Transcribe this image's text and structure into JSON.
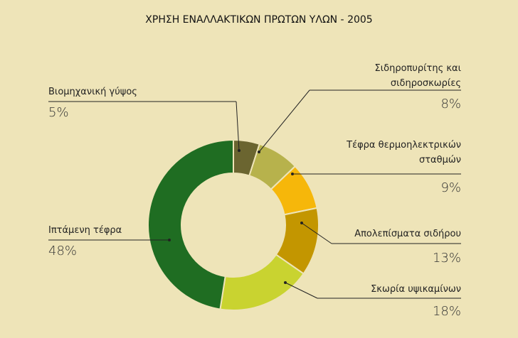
{
  "chart_data": {
    "type": "pie",
    "title": "ΧΡΗΣΗ ΕΝΑΛΛΑΚΤΙΚΩΝ ΠΡΩΤΩΝ ΥΛΩΝ - 2005",
    "categories": [
      "Βιομηχανική γύψος",
      "Σιδηροπυρίτης και σιδηροσκωρίες",
      "Τέφρα θερμοηλεκτρικών σταθμών",
      "Απολεπίσματα σιδήρου",
      "Σκωρία υψικαμίνων",
      "Ιπτάμενη τέφρα"
    ],
    "values": [
      5,
      8,
      9,
      13,
      18,
      48
    ],
    "value_labels": [
      "5%",
      "8%",
      "9%",
      "13%",
      "18%",
      "48%"
    ],
    "colors": [
      "#6b6530",
      "#b7b24c",
      "#f6b70a",
      "#c39600",
      "#c9d330",
      "#1f6d22"
    ]
  }
}
